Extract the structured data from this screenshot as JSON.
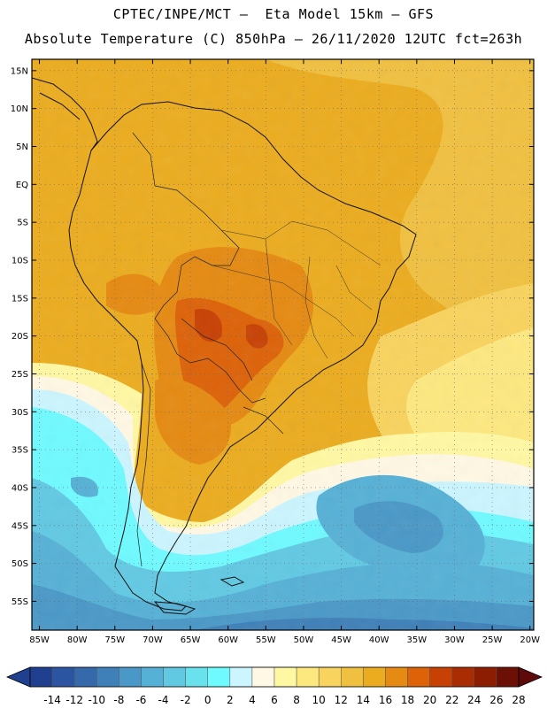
{
  "header": {
    "line1": "CPTEC/INPE/MCT –  Eta Model 15km – GFS",
    "line2": "Absolute Temperature (C) 850hPa – 26/11/2020 12UTC fct=263h"
  },
  "map": {
    "lat_labels": [
      "15N",
      "10N",
      "5N",
      "EQ",
      "5S",
      "10S",
      "15S",
      "20S",
      "25S",
      "30S",
      "35S",
      "40S",
      "45S",
      "50S",
      "55S"
    ],
    "lon_labels": [
      "85W",
      "80W",
      "75W",
      "70W",
      "65W",
      "60W",
      "55W",
      "50W",
      "45W",
      "40W",
      "35W",
      "30W",
      "25W",
      "20W"
    ]
  },
  "colorbar": {
    "labels": [
      "-14",
      "-12",
      "-10",
      "-8",
      "-6",
      "-4",
      "-2",
      "0",
      "2",
      "4",
      "6",
      "8",
      "10",
      "12",
      "14",
      "16",
      "18",
      "20",
      "22",
      "24",
      "26",
      "28"
    ],
    "colors": [
      "#1f3f8f",
      "#2b55a0",
      "#3569ab",
      "#3f80b8",
      "#4a98c7",
      "#56b1d6",
      "#62c9e3",
      "#6ae2ee",
      "#6ffaff",
      "#cbf5ff",
      "#fff8e4",
      "#fff8a3",
      "#fde880",
      "#f8d35e",
      "#f0c040",
      "#ebac1f",
      "#e58a12",
      "#dd6208",
      "#c84104",
      "#a92c02",
      "#8c1d02",
      "#6c1005"
    ]
  }
}
